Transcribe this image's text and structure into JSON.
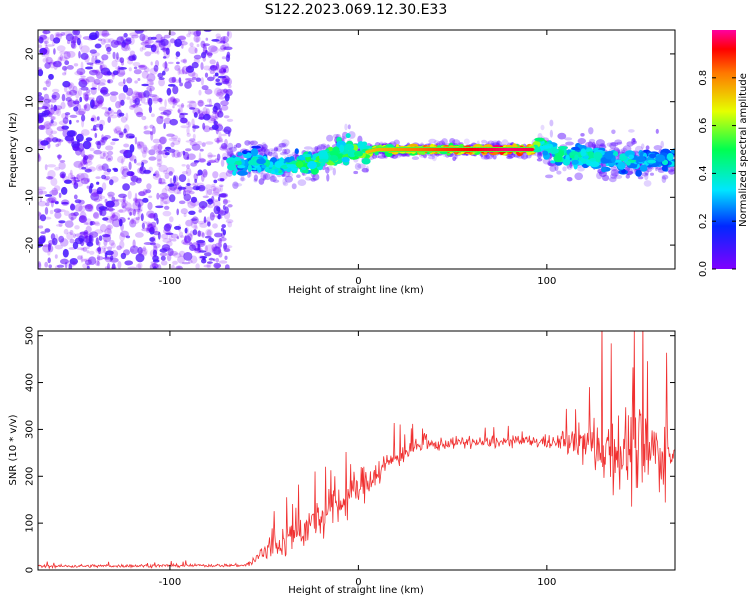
{
  "title": "S122.2023.069.12.30.E33",
  "chart_data": [
    {
      "type": "heatmap",
      "xlabel": "Height of straight line (km)",
      "ylabel": "Frequency (Hz)",
      "xlim": [
        -170,
        168
      ],
      "ylim": [
        -25,
        25
      ],
      "xticks": [
        -100,
        0,
        100
      ],
      "yticks": [
        -20,
        -10,
        0,
        10,
        20
      ],
      "colorbar": {
        "label": "Normalized spectral amplitude",
        "range": [
          0.0,
          1.0
        ],
        "ticks": [
          "0.0",
          "0.2",
          "0.4",
          "0.6",
          "0.8"
        ],
        "tick_values": [
          0.0,
          0.2,
          0.4,
          0.6,
          0.8
        ],
        "colormap": "gist_rainbow_r"
      },
      "ridge": {
        "x": [
          -65,
          -55,
          -45,
          -35,
          -25,
          -15,
          -5,
          0,
          10,
          20,
          40,
          60,
          80,
          92,
          96,
          105,
          120,
          135,
          150,
          165
        ],
        "y": [
          -3,
          -2.5,
          -3.5,
          -3,
          -3,
          -1.5,
          0,
          -1,
          0,
          0,
          0,
          0,
          0,
          0,
          1,
          -1,
          -1.5,
          -2,
          -2.5,
          -2
        ],
        "amplitude": [
          0.45,
          0.4,
          0.45,
          0.5,
          0.6,
          0.65,
          0.7,
          0.72,
          0.75,
          0.78,
          0.85,
          0.92,
          0.98,
          0.95,
          0.55,
          0.5,
          0.45,
          0.45,
          0.4,
          0.4
        ]
      },
      "noise_region": {
        "x_range": [
          -170,
          -68
        ],
        "amplitude": [
          0.0,
          0.3
        ]
      }
    },
    {
      "type": "line",
      "xlabel": "Height of straight line (km)",
      "ylabel": "SNR (10 * v/v)",
      "xlim": [
        -170,
        168
      ],
      "ylim": [
        0,
        510
      ],
      "xticks": [
        -100,
        0,
        100
      ],
      "yticks": [
        0,
        100,
        200,
        300,
        400,
        500
      ],
      "color": "#f03030",
      "envelope": {
        "x": [
          -170,
          -60,
          -55,
          -50,
          -40,
          -30,
          -20,
          -10,
          0,
          10,
          20,
          30,
          50,
          70,
          90,
          105,
          115,
          125,
          135,
          145,
          155,
          168
        ],
        "mean": [
          8,
          10,
          20,
          40,
          60,
          85,
          110,
          140,
          175,
          210,
          240,
          262,
          272,
          272,
          275,
          272,
          272,
          268,
          260,
          255,
          250,
          250
        ],
        "spread": [
          4,
          4,
          15,
          40,
          45,
          50,
          55,
          55,
          50,
          40,
          30,
          20,
          15,
          15,
          15,
          20,
          40,
          80,
          110,
          130,
          110,
          90
        ]
      }
    }
  ]
}
